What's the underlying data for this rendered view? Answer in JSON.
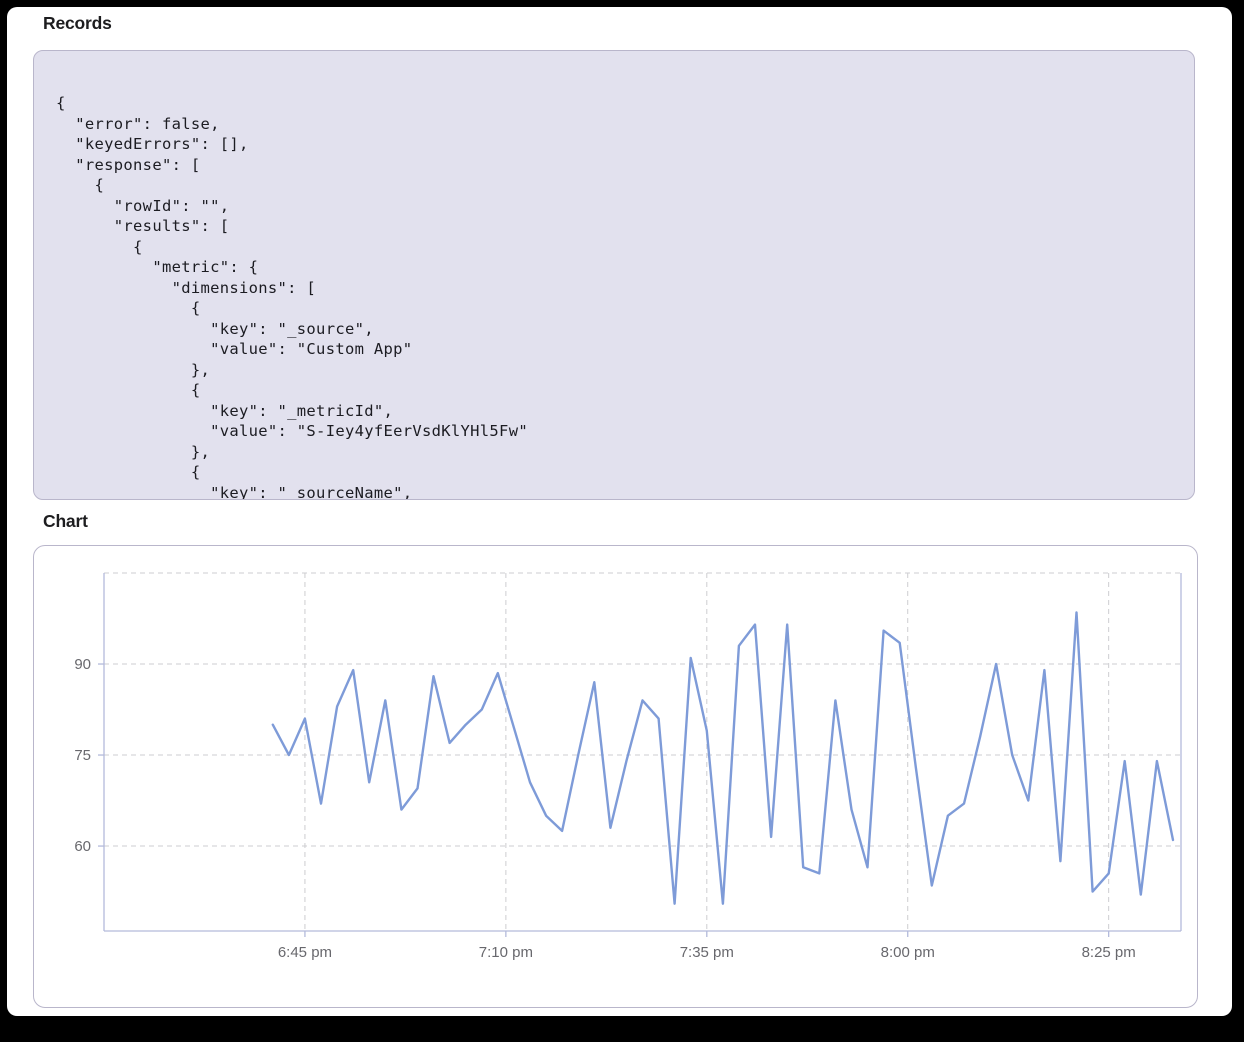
{
  "records": {
    "title": "Records",
    "code": "{\n  \"error\": false,\n  \"keyedErrors\": [],\n  \"response\": [\n    {\n      \"rowId\": \"\",\n      \"results\": [\n        {\n          \"metric\": {\n            \"dimensions\": [\n              {\n                \"key\": \"_source\",\n                \"value\": \"Custom App\"\n              },\n              {\n                \"key\": \"_metricId\",\n                \"value\": \"S-Iey4yfEerVsdKlYHl5Fw\"\n              },\n              {\n                \"key\": \"_sourceName\","
  },
  "chart": {
    "title": "Chart"
  },
  "colors": {
    "frame_bg": "#000000",
    "heading_text": "#1d1d1f",
    "code_panel_bg": "#e2e1ee",
    "panel_border": "#b9b6cb",
    "code_text": "#1c1c22",
    "line": "#7e9bd8",
    "axis": "#b3badb",
    "grid": "#cdcdd0",
    "tick_label": "#68686d"
  },
  "chart_data": {
    "type": "line",
    "title": "Chart",
    "legend": "none",
    "grid": "dashed",
    "ylim": [
      46,
      105
    ],
    "yticks": [
      60,
      75,
      90
    ],
    "ygrid_extra": [
      105
    ],
    "x_axis_range": [
      "6:20 pm",
      "8:34 pm"
    ],
    "xticks": [
      "6:45 pm",
      "7:10 pm",
      "7:35 pm",
      "8:00 pm",
      "8:25 pm"
    ],
    "x": [
      "6:41 pm",
      "6:43 pm",
      "6:45 pm",
      "6:47 pm",
      "6:49 pm",
      "6:51 pm",
      "6:53 pm",
      "6:55 pm",
      "6:57 pm",
      "6:59 pm",
      "7:01 pm",
      "7:03 pm",
      "7:05 pm",
      "7:07 pm",
      "7:09 pm",
      "7:11 pm",
      "7:13 pm",
      "7:15 pm",
      "7:17 pm",
      "7:19 pm",
      "7:21 pm",
      "7:23 pm",
      "7:25 pm",
      "7:27 pm",
      "7:29 pm",
      "7:31 pm",
      "7:33 pm",
      "7:35 pm",
      "7:37 pm",
      "7:39 pm",
      "7:41 pm",
      "7:43 pm",
      "7:45 pm",
      "7:47 pm",
      "7:49 pm",
      "7:51 pm",
      "7:53 pm",
      "7:55 pm",
      "7:57 pm",
      "7:59 pm",
      "8:01 pm",
      "8:03 pm",
      "8:05 pm",
      "8:07 pm",
      "8:09 pm",
      "8:11 pm",
      "8:13 pm",
      "8:15 pm",
      "8:17 pm",
      "8:19 pm",
      "8:21 pm",
      "8:23 pm",
      "8:25 pm",
      "8:27 pm",
      "8:29 pm",
      "8:31 pm",
      "8:33 pm"
    ],
    "values": [
      80,
      75,
      81,
      67,
      83,
      89,
      70.5,
      84,
      66,
      69.5,
      88,
      77,
      80,
      82.5,
      88.5,
      79.5,
      70.5,
      65,
      62.5,
      75,
      87,
      63,
      74,
      84,
      81,
      50.5,
      91,
      79,
      50.5,
      93,
      96.5,
      61.5,
      96.5,
      56.5,
      55.5,
      84,
      66,
      56.5,
      95.5,
      93.5,
      73,
      53.5,
      65,
      67,
      78,
      90,
      75,
      67.5,
      89,
      57.5,
      98.5,
      52.5,
      55.5,
      74,
      52,
      74,
      61
    ]
  }
}
